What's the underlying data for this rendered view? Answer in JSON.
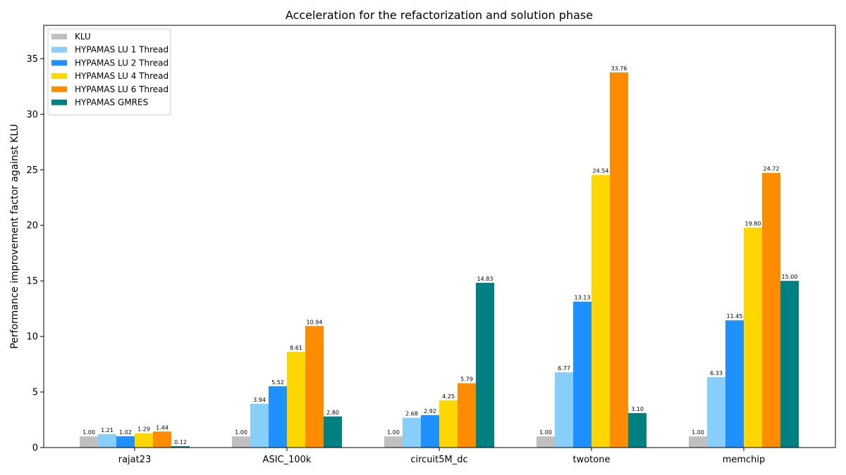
{
  "chart_data": {
    "type": "bar",
    "title": "Acceleration for the refactorization and solution phase",
    "xlabel": "",
    "ylabel": "Performance improvement factor against KLU",
    "ylim": [
      0,
      38
    ],
    "yticks": [
      0,
      5,
      10,
      15,
      20,
      25,
      30,
      35
    ],
    "grid": false,
    "legend_position": "top-left",
    "categories": [
      "rajat23",
      "ASIC_100k",
      "circuit5M_dc",
      "twotone",
      "memchip"
    ],
    "series": [
      {
        "name": "KLU",
        "color": "#c0c0c0",
        "values": [
          1.0,
          1.0,
          1.0,
          1.0,
          1.0
        ],
        "labels": [
          "1.00",
          "1.00",
          "1.00",
          "1.00",
          "1.00"
        ]
      },
      {
        "name": "HYPAMAS LU 1 Thread",
        "color": "#87cefa",
        "values": [
          1.21,
          3.94,
          2.68,
          6.77,
          6.33
        ],
        "labels": [
          "1.21",
          "3.94",
          "2.68",
          "6.77",
          "6.33"
        ]
      },
      {
        "name": "HYPAMAS LU 2 Thread",
        "color": "#1e90ff",
        "values": [
          1.02,
          5.52,
          2.92,
          13.13,
          11.45
        ],
        "labels": [
          "1.02",
          "5.52",
          "2.92",
          "13.13",
          "11.45"
        ]
      },
      {
        "name": "HYPAMAS LU 4 Thread",
        "color": "#ffd700",
        "values": [
          1.29,
          8.61,
          4.25,
          24.54,
          19.8
        ],
        "labels": [
          "1.29",
          "8.61",
          "4.25",
          "24.54",
          "19.80"
        ]
      },
      {
        "name": "HYPAMAS LU 6 Thread",
        "color": "#ff8c00",
        "values": [
          1.44,
          10.94,
          5.79,
          33.76,
          24.72
        ],
        "labels": [
          "1.44",
          "10.94",
          "5.79",
          "33.76",
          "24.72"
        ]
      },
      {
        "name": "HYPAMAS GMRES",
        "color": "#008080",
        "values": [
          0.12,
          2.8,
          14.83,
          3.1,
          15.0
        ],
        "labels": [
          "0.12",
          "2.80",
          "14.83",
          "3.10",
          "15.00"
        ]
      }
    ]
  }
}
